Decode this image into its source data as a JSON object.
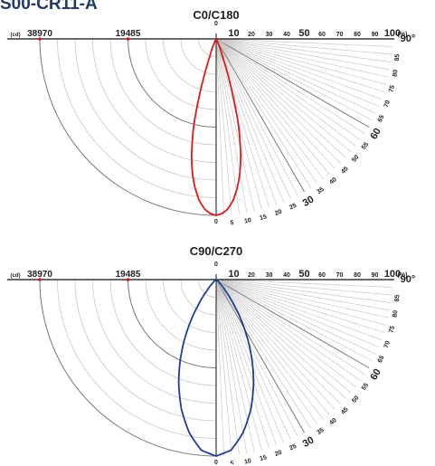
{
  "page_title": "S00-CR11-A",
  "chart_data": [
    {
      "type": "polar-line",
      "title": "C0/C180",
      "intensity_unit": "(cd)",
      "intensity_ticks": [
        "38970",
        "19485"
      ],
      "intensity_max": 38970,
      "percent_unit": "(%)",
      "percent_ticks": [
        "10",
        "20",
        "30",
        "40",
        "50",
        "60",
        "70",
        "80",
        "90",
        "100"
      ],
      "angle_top_label": "0",
      "angle_end_label": "90°",
      "angle_ticks": [
        "0",
        "5",
        "10",
        "15",
        "20",
        "25",
        "30",
        "35",
        "40",
        "45",
        "50",
        "55",
        "60",
        "65",
        "70",
        "75",
        "80",
        "85"
      ],
      "curve_color": "#dd1b1b",
      "series": [
        {
          "angles_deg": [
            0,
            2,
            4,
            6,
            8,
            10,
            12,
            14,
            15,
            16,
            18,
            20,
            25,
            30,
            45,
            60,
            90
          ],
          "percent": [
            100,
            99,
            96.5,
            92,
            85.5,
            77.5,
            67,
            54,
            47,
            38,
            22,
            10,
            2,
            0.5,
            0,
            0,
            0
          ]
        }
      ]
    },
    {
      "type": "polar-line",
      "title": "C90/C270",
      "intensity_unit": "(cd)",
      "intensity_ticks": [
        "38970",
        "19485"
      ],
      "intensity_max": 38970,
      "percent_unit": "(%)",
      "percent_ticks": [
        "10",
        "20",
        "30",
        "40",
        "50",
        "60",
        "70",
        "80",
        "90",
        "100"
      ],
      "angle_top_label": "0",
      "angle_end_label": "90°",
      "angle_ticks": [
        "0",
        "5",
        "10",
        "15",
        "20",
        "25",
        "30",
        "35",
        "40",
        "45",
        "50",
        "55",
        "60",
        "65",
        "70",
        "75",
        "80",
        "85"
      ],
      "curve_color": "#1d3f95",
      "series": [
        {
          "angles_deg": [
            0,
            5,
            10,
            15,
            20,
            25,
            30,
            35,
            40,
            45,
            50,
            60,
            90
          ],
          "percent": [
            100,
            97,
            88,
            76,
            62,
            47,
            32,
            18,
            8,
            3,
            1,
            0,
            0
          ]
        }
      ]
    }
  ]
}
